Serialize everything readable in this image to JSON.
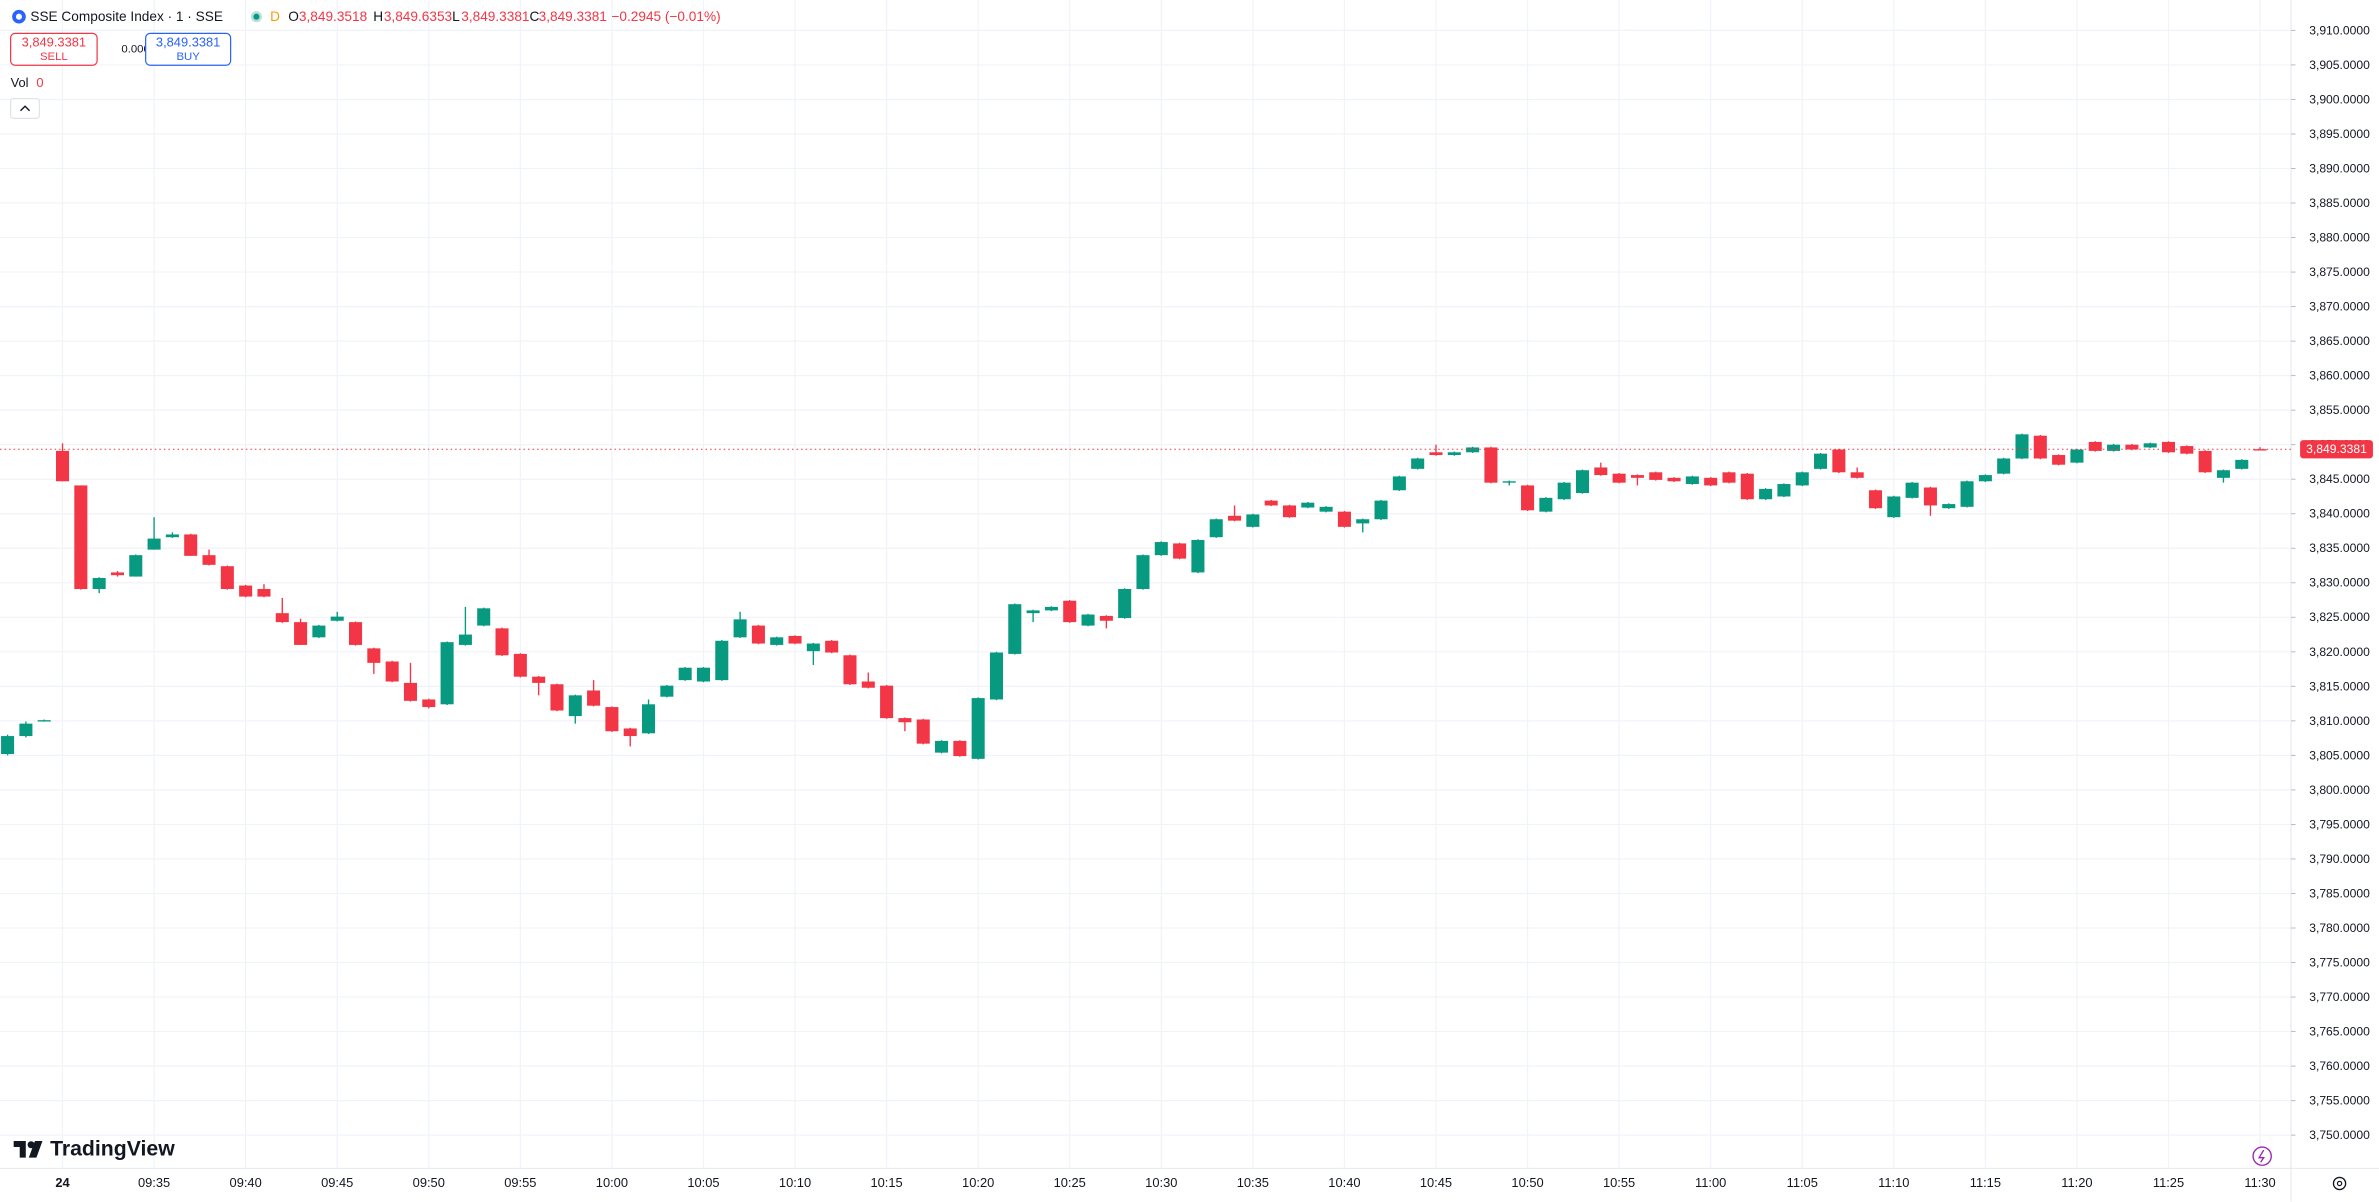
{
  "header": {
    "symbol": "SSE Composite Index · 1 · SSE",
    "market_status": "D",
    "ohlc": [
      {
        "label": "O",
        "value": "3,849.3518"
      },
      {
        "label": "H",
        "value": "3,849.6353"
      },
      {
        "label": "L",
        "value": "3,849.3381"
      },
      {
        "label": "C",
        "value": "3,849.3381"
      }
    ],
    "change": "−0.2945 (−0.01%)",
    "sell": {
      "price": "3,849.3381",
      "label": "SELL"
    },
    "spread": "0.0000",
    "buy": {
      "price": "3,849.3381",
      "label": "BUY"
    },
    "volume": {
      "label": "Vol",
      "value": "0"
    }
  },
  "branding": "TradingView",
  "chart_data": {
    "type": "candlestick",
    "up_color": "#089981",
    "down_color": "#f23645",
    "grid": true,
    "categories": [
      "09:27",
      "09:28",
      "09:29",
      "09:30",
      "09:31",
      "09:32",
      "09:33",
      "09:34",
      "09:35",
      "09:36",
      "09:37",
      "09:38",
      "09:39",
      "09:40",
      "09:41",
      "09:42",
      "09:43",
      "09:44",
      "09:45",
      "09:46",
      "09:47",
      "09:48",
      "09:49",
      "09:50",
      "09:51",
      "09:52",
      "09:53",
      "09:54",
      "09:55",
      "09:56",
      "09:57",
      "09:58",
      "09:59",
      "10:00",
      "10:01",
      "10:02",
      "10:03",
      "10:04",
      "10:05",
      "10:06",
      "10:07",
      "10:08",
      "10:09",
      "10:10",
      "10:11",
      "10:12",
      "10:13",
      "10:14",
      "10:15",
      "10:16",
      "10:17",
      "10:18",
      "10:19",
      "10:20",
      "10:21",
      "10:22",
      "10:23",
      "10:24",
      "10:25",
      "10:26",
      "10:27",
      "10:28",
      "10:29",
      "10:30",
      "10:31",
      "10:32",
      "10:33",
      "10:34",
      "10:35",
      "10:36",
      "10:37",
      "10:38",
      "10:39",
      "10:40",
      "10:41",
      "10:42",
      "10:43",
      "10:44",
      "10:45",
      "10:46",
      "10:47",
      "10:48",
      "10:49",
      "10:50",
      "10:51",
      "10:52",
      "10:53",
      "10:54",
      "10:55",
      "10:56",
      "10:57",
      "10:58",
      "10:59",
      "11:00",
      "11:01",
      "11:02",
      "11:03",
      "11:04",
      "11:05",
      "11:06",
      "11:07",
      "11:08",
      "11:09",
      "11:10",
      "11:11",
      "11:12",
      "11:13",
      "11:14",
      "11:15",
      "11:16",
      "11:17",
      "11:18",
      "11:19",
      "11:20",
      "11:21",
      "11:22",
      "11:23",
      "11:24",
      "11:25",
      "11:26",
      "11:27",
      "11:28",
      "11:29",
      "11:30"
    ],
    "open": [
      3805.2,
      3807.8,
      3810.0,
      3849.1,
      3844.1,
      3829.1,
      3831.5,
      3830.9,
      3834.8,
      3836.6,
      3837.0,
      3834.0,
      3832.4,
      3829.6,
      3829.1,
      3825.6,
      3824.3,
      3822.1,
      3824.5,
      3824.3,
      3820.5,
      3818.6,
      3815.5,
      3813.1,
      3812.4,
      3821.0,
      3823.8,
      3823.4,
      3819.7,
      3816.4,
      3815.3,
      3810.7,
      3814.4,
      3812.0,
      3808.9,
      3808.2,
      3813.5,
      3815.9,
      3815.7,
      3815.9,
      3822.1,
      3823.8,
      3821.0,
      3822.3,
      3820.1,
      3821.6,
      3819.5,
      3815.7,
      3815.1,
      3810.4,
      3810.2,
      3805.4,
      3807.1,
      3804.5,
      3813.1,
      3819.7,
      3825.6,
      3826.0,
      3827.4,
      3823.8,
      3825.2,
      3824.9,
      3829.1,
      3834.0,
      3835.7,
      3831.5,
      3836.6,
      3839.7,
      3838.1,
      3841.9,
      3841.2,
      3840.9,
      3840.3,
      3840.3,
      3838.6,
      3839.2,
      3843.4,
      3846.5,
      3848.9,
      3848.5,
      3848.9,
      3849.6,
      3844.5,
      3844.1,
      3840.3,
      3842.1,
      3843.0,
      3846.7,
      3845.8,
      3845.6,
      3846.0,
      3845.2,
      3844.3,
      3845.2,
      3846.0,
      3845.8,
      3842.1,
      3842.5,
      3844.1,
      3846.5,
      3849.3,
      3846.0,
      3843.4,
      3839.5,
      3842.3,
      3843.8,
      3840.8,
      3841.0,
      3844.7,
      3845.8,
      3848.0,
      3851.3,
      3848.5,
      3847.4,
      3850.4,
      3849.1,
      3850.0,
      3849.6,
      3850.4,
      3849.8,
      3849.1,
      3845.2,
      3846.5,
      3849.3518
    ],
    "high": [
      3808.0,
      3809.9,
      3810.2,
      3850.2,
      3844.1,
      3830.8,
      3831.7,
      3834.1,
      3839.5,
      3837.3,
      3837.1,
      3834.8,
      3832.5,
      3829.7,
      3829.8,
      3827.8,
      3824.8,
      3823.9,
      3825.8,
      3824.4,
      3820.6,
      3818.7,
      3818.4,
      3813.2,
      3821.5,
      3826.5,
      3826.4,
      3823.5,
      3819.8,
      3816.5,
      3815.4,
      3813.8,
      3815.9,
      3812.1,
      3809.0,
      3813.1,
      3815.2,
      3817.8,
      3817.8,
      3821.7,
      3825.8,
      3823.9,
      3822.2,
      3822.4,
      3821.3,
      3821.7,
      3819.6,
      3817.0,
      3815.2,
      3810.5,
      3810.3,
      3807.2,
      3807.2,
      3813.4,
      3820.0,
      3827.0,
      3826.1,
      3826.6,
      3827.5,
      3825.5,
      3825.3,
      3829.2,
      3834.1,
      3836.0,
      3835.8,
      3836.3,
      3839.3,
      3841.2,
      3840.0,
      3842.0,
      3841.3,
      3841.7,
      3841.1,
      3840.4,
      3839.3,
      3842.0,
      3845.5,
      3848.1,
      3850.0,
      3849.0,
      3849.7,
      3849.7,
      3844.8,
      3844.2,
      3842.4,
      3844.6,
      3846.4,
      3847.4,
      3845.9,
      3845.7,
      3846.1,
      3845.3,
      3845.5,
      3845.3,
      3846.1,
      3845.9,
      3843.7,
      3844.4,
      3846.1,
      3848.8,
      3849.4,
      3846.7,
      3843.5,
      3842.6,
      3844.6,
      3843.9,
      3841.5,
      3844.8,
      3845.7,
      3848.1,
      3851.6,
      3851.4,
      3848.6,
      3849.4,
      3850.5,
      3850.1,
      3850.1,
      3850.3,
      3850.5,
      3849.9,
      3849.2,
      3846.4,
      3847.9,
      3849.6353
    ],
    "low": [
      3805.0,
      3807.6,
      3809.9,
      3844.7,
      3829.0,
      3828.5,
      3830.9,
      3830.9,
      3834.8,
      3836.5,
      3833.9,
      3832.5,
      3829.0,
      3827.9,
      3827.9,
      3824.2,
      3821.0,
      3822.0,
      3824.4,
      3820.9,
      3816.8,
      3815.6,
      3812.8,
      3811.8,
      3812.3,
      3820.9,
      3823.7,
      3819.4,
      3816.3,
      3813.7,
      3811.4,
      3809.6,
      3812.1,
      3808.4,
      3806.3,
      3808.1,
      3813.4,
      3815.8,
      3815.6,
      3815.8,
      3822.0,
      3821.1,
      3820.9,
      3821.1,
      3818.1,
      3819.8,
      3815.2,
      3814.7,
      3810.3,
      3808.5,
      3806.6,
      3805.3,
      3804.8,
      3804.4,
      3813.0,
      3819.6,
      3824.3,
      3825.9,
      3824.2,
      3823.7,
      3823.4,
      3824.8,
      3829.0,
      3833.9,
      3833.4,
      3831.4,
      3836.5,
      3838.9,
      3838.0,
      3841.1,
      3839.4,
      3840.8,
      3840.2,
      3838.0,
      3837.3,
      3839.1,
      3843.3,
      3846.4,
      3848.4,
      3848.4,
      3848.8,
      3844.4,
      3844.1,
      3840.4,
      3840.2,
      3842.0,
      3842.9,
      3845.5,
      3844.4,
      3844.1,
      3844.8,
      3844.6,
      3844.2,
      3844.0,
      3844.4,
      3842.0,
      3842.0,
      3842.4,
      3844.0,
      3846.4,
      3845.9,
      3845.1,
      3840.7,
      3839.4,
      3842.2,
      3839.7,
      3840.7,
      3840.9,
      3844.6,
      3845.7,
      3847.9,
      3847.9,
      3847.0,
      3847.3,
      3849.0,
      3849.0,
      3849.2,
      3849.5,
      3848.8,
      3848.6,
      3845.9,
      3844.5,
      3846.4,
      3849.3381
    ],
    "close": [
      3807.8,
      3809.6,
      3810.1,
      3844.7,
      3829.1,
      3830.7,
      3831.1,
      3834.0,
      3836.4,
      3837.0,
      3833.9,
      3832.6,
      3829.1,
      3828.0,
      3828.0,
      3824.3,
      3821.0,
      3823.8,
      3825.1,
      3821.0,
      3818.4,
      3815.7,
      3812.9,
      3812.0,
      3821.4,
      3822.5,
      3826.3,
      3819.5,
      3816.4,
      3815.5,
      3811.5,
      3813.7,
      3812.2,
      3808.5,
      3807.8,
      3812.4,
      3815.1,
      3817.7,
      3817.7,
      3821.6,
      3824.7,
      3821.2,
      3822.1,
      3821.2,
      3821.2,
      3819.9,
      3815.3,
      3814.8,
      3810.4,
      3809.8,
      3806.7,
      3807.1,
      3804.9,
      3813.3,
      3819.9,
      3826.9,
      3826.0,
      3826.5,
      3824.3,
      3825.4,
      3824.5,
      3829.1,
      3834.0,
      3835.9,
      3833.5,
      3836.2,
      3839.2,
      3839.0,
      3839.9,
      3841.2,
      3839.5,
      3841.6,
      3841.0,
      3838.1,
      3839.2,
      3841.9,
      3845.4,
      3848.0,
      3848.5,
      3848.9,
      3849.6,
      3844.5,
      3844.7,
      3840.5,
      3842.3,
      3844.5,
      3846.3,
      3845.6,
      3844.5,
      3845.2,
      3844.9,
      3844.7,
      3845.4,
      3844.1,
      3844.5,
      3842.1,
      3843.6,
      3844.3,
      3846.0,
      3848.7,
      3846.0,
      3845.2,
      3840.8,
      3842.5,
      3844.5,
      3841.2,
      3841.4,
      3844.7,
      3845.6,
      3848.0,
      3851.5,
      3848.0,
      3847.1,
      3849.3,
      3849.1,
      3850.0,
      3849.3,
      3850.2,
      3848.9,
      3848.7,
      3846.0,
      3846.3,
      3847.8,
      3849.3381
    ],
    "last_price": {
      "value": 3849.3381,
      "label": "3,849.3381"
    },
    "ylim": [
      3745.2,
      3914.4
    ],
    "yticks": [
      {
        "value": 3750,
        "label": "3,750.0000"
      },
      {
        "value": 3755,
        "label": "3,755.0000"
      },
      {
        "value": 3760,
        "label": "3,760.0000"
      },
      {
        "value": 3765,
        "label": "3,765.0000"
      },
      {
        "value": 3770,
        "label": "3,770.0000"
      },
      {
        "value": 3775,
        "label": "3,775.0000"
      },
      {
        "value": 3780,
        "label": "3,780.0000"
      },
      {
        "value": 3785,
        "label": "3,785.0000"
      },
      {
        "value": 3790,
        "label": "3,790.0000"
      },
      {
        "value": 3795,
        "label": "3,795.0000"
      },
      {
        "value": 3800,
        "label": "3,800.0000"
      },
      {
        "value": 3805,
        "label": "3,805.0000"
      },
      {
        "value": 3810,
        "label": "3,810.0000"
      },
      {
        "value": 3815,
        "label": "3,815.0000"
      },
      {
        "value": 3820,
        "label": "3,820.0000"
      },
      {
        "value": 3825,
        "label": "3,825.0000"
      },
      {
        "value": 3830,
        "label": "3,830.0000"
      },
      {
        "value": 3835,
        "label": "3,835.0000"
      },
      {
        "value": 3840,
        "label": "3,840.0000"
      },
      {
        "value": 3845,
        "label": "3,845.0000"
      },
      {
        "value": 3850,
        "label": "3,850.0000"
      },
      {
        "value": 3855,
        "label": "3,855.0000"
      },
      {
        "value": 3860,
        "label": "3,860.0000"
      },
      {
        "value": 3865,
        "label": "3,865.0000"
      },
      {
        "value": 3870,
        "label": "3,870.0000"
      },
      {
        "value": 3875,
        "label": "3,875.0000"
      },
      {
        "value": 3880,
        "label": "3,880.0000"
      },
      {
        "value": 3885,
        "label": "3,885.0000"
      },
      {
        "value": 3890,
        "label": "3,890.0000"
      },
      {
        "value": 3895,
        "label": "3,895.0000"
      },
      {
        "value": 3900,
        "label": "3,900.0000"
      },
      {
        "value": 3905,
        "label": "3,905.0000"
      },
      {
        "value": 3910,
        "label": "3,910.0000"
      }
    ],
    "xticks": [
      {
        "value": "09:30",
        "label": "24"
      },
      "09:35",
      "09:40",
      "09:45",
      "09:50",
      "09:55",
      "10:00",
      "10:05",
      "10:10",
      "10:15",
      "10:20",
      "10:25",
      "10:30",
      "10:35",
      "10:40",
      "10:45",
      "10:50",
      "10:55",
      "11:00",
      "11:05",
      "11:10",
      "11:15",
      "11:20",
      "11:25",
      "11:30"
    ]
  }
}
